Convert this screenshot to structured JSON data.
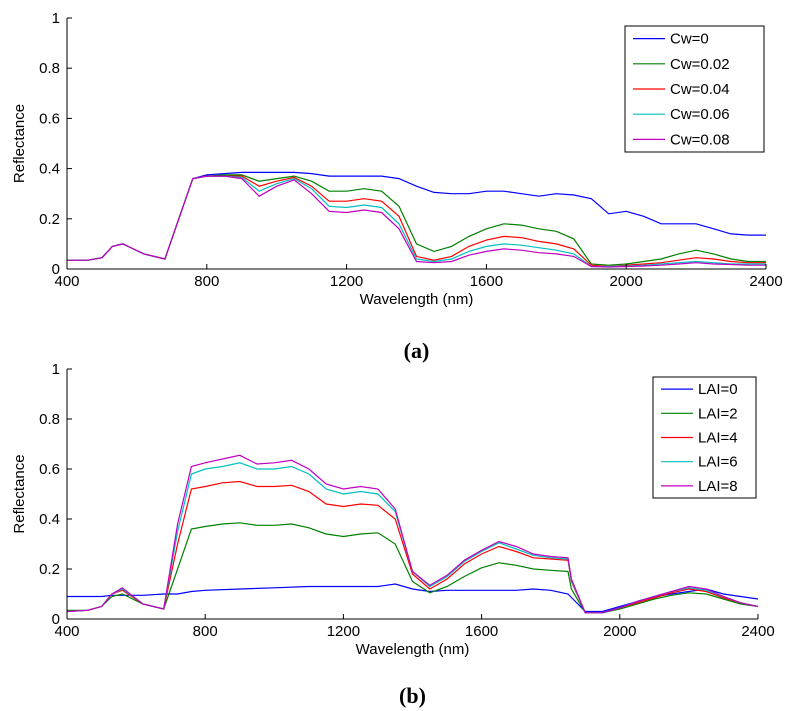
{
  "chart_data": [
    {
      "type": "line",
      "caption": "(a)",
      "xlabel": "Wavelength  (nm)",
      "ylabel": "Reflectance",
      "xlim": [
        400,
        2400
      ],
      "ylim": [
        0,
        1
      ],
      "xticks": [
        "400",
        "800",
        "1200",
        "1600",
        "2000",
        "2400"
      ],
      "yticks": [
        "0",
        "0.2",
        "0.4",
        "0.6",
        "0.8",
        "1"
      ],
      "legend": "top-right",
      "grid": false,
      "series": [
        {
          "name": "Cw=0",
          "color": "#0000ff",
          "x": [
            400,
            460,
            500,
            530,
            560,
            620,
            680,
            720,
            760,
            800,
            850,
            900,
            950,
            1000,
            1050,
            1100,
            1150,
            1200,
            1250,
            1300,
            1350,
            1400,
            1450,
            1500,
            1550,
            1600,
            1650,
            1700,
            1750,
            1800,
            1850,
            1900,
            1950,
            2000,
            2050,
            2100,
            2150,
            2200,
            2250,
            2300,
            2350,
            2400
          ],
          "y": [
            0.035,
            0.035,
            0.045,
            0.09,
            0.1,
            0.06,
            0.04,
            0.2,
            0.36,
            0.375,
            0.38,
            0.385,
            0.385,
            0.385,
            0.385,
            0.38,
            0.37,
            0.37,
            0.37,
            0.37,
            0.36,
            0.33,
            0.305,
            0.3,
            0.3,
            0.31,
            0.31,
            0.3,
            0.29,
            0.3,
            0.295,
            0.28,
            0.22,
            0.23,
            0.21,
            0.18,
            0.18,
            0.18,
            0.16,
            0.14,
            0.135,
            0.135
          ]
        },
        {
          "name": "Cw=0.02",
          "color": "#008000",
          "x": [
            400,
            460,
            500,
            530,
            560,
            620,
            680,
            720,
            760,
            800,
            850,
            900,
            950,
            1000,
            1050,
            1100,
            1150,
            1200,
            1250,
            1300,
            1350,
            1400,
            1450,
            1500,
            1550,
            1600,
            1650,
            1700,
            1750,
            1800,
            1850,
            1900,
            1950,
            2000,
            2050,
            2100,
            2150,
            2200,
            2250,
            2300,
            2350,
            2400
          ],
          "y": [
            0.035,
            0.035,
            0.045,
            0.09,
            0.1,
            0.06,
            0.04,
            0.2,
            0.36,
            0.37,
            0.375,
            0.375,
            0.35,
            0.36,
            0.37,
            0.35,
            0.31,
            0.31,
            0.32,
            0.31,
            0.25,
            0.1,
            0.07,
            0.09,
            0.13,
            0.16,
            0.18,
            0.175,
            0.16,
            0.15,
            0.12,
            0.02,
            0.015,
            0.02,
            0.03,
            0.04,
            0.06,
            0.075,
            0.06,
            0.04,
            0.03,
            0.03
          ]
        },
        {
          "name": "Cw=0.04",
          "color": "#ff0000",
          "x": [
            400,
            460,
            500,
            530,
            560,
            620,
            680,
            720,
            760,
            800,
            850,
            900,
            950,
            1000,
            1050,
            1100,
            1150,
            1200,
            1250,
            1300,
            1350,
            1400,
            1450,
            1500,
            1550,
            1600,
            1650,
            1700,
            1750,
            1800,
            1850,
            1900,
            1950,
            2000,
            2050,
            2100,
            2150,
            2200,
            2250,
            2300,
            2350,
            2400
          ],
          "y": [
            0.035,
            0.035,
            0.045,
            0.09,
            0.1,
            0.06,
            0.04,
            0.2,
            0.36,
            0.37,
            0.37,
            0.37,
            0.33,
            0.35,
            0.365,
            0.33,
            0.27,
            0.27,
            0.28,
            0.27,
            0.21,
            0.05,
            0.035,
            0.05,
            0.09,
            0.115,
            0.13,
            0.125,
            0.11,
            0.1,
            0.08,
            0.015,
            0.01,
            0.015,
            0.02,
            0.025,
            0.035,
            0.045,
            0.04,
            0.03,
            0.025,
            0.025
          ]
        },
        {
          "name": "Cw=0.06",
          "color": "#00c0c0",
          "x": [
            400,
            460,
            500,
            530,
            560,
            620,
            680,
            720,
            760,
            800,
            850,
            900,
            950,
            1000,
            1050,
            1100,
            1150,
            1200,
            1250,
            1300,
            1350,
            1400,
            1450,
            1500,
            1550,
            1600,
            1650,
            1700,
            1750,
            1800,
            1850,
            1900,
            1950,
            2000,
            2050,
            2100,
            2150,
            2200,
            2250,
            2300,
            2350,
            2400
          ],
          "y": [
            0.035,
            0.035,
            0.045,
            0.09,
            0.1,
            0.06,
            0.04,
            0.2,
            0.36,
            0.37,
            0.37,
            0.365,
            0.31,
            0.34,
            0.36,
            0.32,
            0.25,
            0.245,
            0.255,
            0.245,
            0.18,
            0.04,
            0.03,
            0.04,
            0.07,
            0.09,
            0.1,
            0.095,
            0.085,
            0.075,
            0.06,
            0.01,
            0.01,
            0.012,
            0.015,
            0.02,
            0.025,
            0.03,
            0.025,
            0.02,
            0.02,
            0.02
          ]
        },
        {
          "name": "Cw=0.08",
          "color": "#c000c0",
          "x": [
            400,
            460,
            500,
            530,
            560,
            620,
            680,
            720,
            760,
            800,
            850,
            900,
            950,
            1000,
            1050,
            1100,
            1150,
            1200,
            1250,
            1300,
            1350,
            1400,
            1450,
            1500,
            1550,
            1600,
            1650,
            1700,
            1750,
            1800,
            1850,
            1900,
            1950,
            2000,
            2050,
            2100,
            2150,
            2200,
            2250,
            2300,
            2350,
            2400
          ],
          "y": [
            0.035,
            0.035,
            0.045,
            0.09,
            0.1,
            0.06,
            0.04,
            0.2,
            0.36,
            0.37,
            0.37,
            0.36,
            0.29,
            0.33,
            0.355,
            0.3,
            0.23,
            0.225,
            0.235,
            0.225,
            0.16,
            0.03,
            0.025,
            0.03,
            0.055,
            0.07,
            0.08,
            0.075,
            0.065,
            0.06,
            0.05,
            0.01,
            0.008,
            0.01,
            0.012,
            0.015,
            0.02,
            0.025,
            0.02,
            0.018,
            0.015,
            0.015
          ]
        }
      ]
    },
    {
      "type": "line",
      "caption": "(b)",
      "xlabel": "Wavelength  (nm)",
      "ylabel": "Reflectance",
      "xlim": [
        400,
        2400
      ],
      "ylim": [
        0,
        1
      ],
      "xticks": [
        "400",
        "800",
        "1200",
        "1600",
        "2000",
        "2400"
      ],
      "yticks": [
        "0",
        "0.2",
        "0.4",
        "0.6",
        "0.8",
        "1"
      ],
      "legend": "top-right",
      "grid": false,
      "series": [
        {
          "name": "LAI=0",
          "color": "#0000ff",
          "x": [
            400,
            460,
            500,
            530,
            560,
            620,
            680,
            720,
            760,
            800,
            900,
            1000,
            1100,
            1200,
            1300,
            1350,
            1400,
            1450,
            1500,
            1550,
            1600,
            1650,
            1700,
            1750,
            1800,
            1850,
            1900,
            1950,
            2000,
            2050,
            2100,
            2150,
            2200,
            2250,
            2300,
            2350,
            2400
          ],
          "y": [
            0.09,
            0.09,
            0.09,
            0.095,
            0.095,
            0.095,
            0.1,
            0.1,
            0.11,
            0.115,
            0.12,
            0.125,
            0.13,
            0.13,
            0.13,
            0.14,
            0.12,
            0.11,
            0.115,
            0.115,
            0.115,
            0.115,
            0.115,
            0.12,
            0.115,
            0.1,
            0.03,
            0.03,
            0.05,
            0.07,
            0.09,
            0.1,
            0.11,
            0.12,
            0.1,
            0.09,
            0.08
          ]
        },
        {
          "name": "LAI=2",
          "color": "#008000",
          "x": [
            400,
            460,
            500,
            530,
            560,
            620,
            680,
            720,
            760,
            800,
            850,
            900,
            950,
            1000,
            1050,
            1100,
            1150,
            1200,
            1250,
            1300,
            1350,
            1400,
            1450,
            1500,
            1550,
            1600,
            1650,
            1700,
            1750,
            1800,
            1850,
            1860,
            1900,
            1950,
            2000,
            2050,
            2100,
            2150,
            2200,
            2250,
            2300,
            2350,
            2400
          ],
          "y": [
            0.035,
            0.035,
            0.05,
            0.09,
            0.1,
            0.06,
            0.04,
            0.2,
            0.36,
            0.37,
            0.38,
            0.385,
            0.375,
            0.375,
            0.38,
            0.365,
            0.34,
            0.33,
            0.34,
            0.345,
            0.3,
            0.15,
            0.105,
            0.13,
            0.17,
            0.205,
            0.225,
            0.215,
            0.2,
            0.195,
            0.19,
            0.12,
            0.025,
            0.025,
            0.04,
            0.06,
            0.08,
            0.095,
            0.105,
            0.1,
            0.08,
            0.06,
            0.05
          ]
        },
        {
          "name": "LAI=4",
          "color": "#ff0000",
          "x": [
            400,
            460,
            500,
            530,
            560,
            620,
            680,
            720,
            760,
            800,
            850,
            900,
            950,
            1000,
            1050,
            1100,
            1150,
            1200,
            1250,
            1300,
            1350,
            1400,
            1450,
            1500,
            1550,
            1600,
            1650,
            1700,
            1750,
            1800,
            1850,
            1860,
            1900,
            1950,
            2000,
            2050,
            2100,
            2150,
            2200,
            2250,
            2300,
            2350,
            2400
          ],
          "y": [
            0.03,
            0.035,
            0.05,
            0.1,
            0.115,
            0.06,
            0.04,
            0.3,
            0.52,
            0.53,
            0.545,
            0.55,
            0.53,
            0.53,
            0.535,
            0.51,
            0.46,
            0.45,
            0.46,
            0.455,
            0.4,
            0.18,
            0.12,
            0.16,
            0.22,
            0.26,
            0.29,
            0.27,
            0.245,
            0.24,
            0.235,
            0.15,
            0.025,
            0.025,
            0.045,
            0.065,
            0.085,
            0.105,
            0.12,
            0.11,
            0.085,
            0.065,
            0.05
          ]
        },
        {
          "name": "LAI=6",
          "color": "#00c0c0",
          "x": [
            400,
            460,
            500,
            530,
            560,
            620,
            680,
            720,
            760,
            800,
            850,
            900,
            950,
            1000,
            1050,
            1100,
            1150,
            1200,
            1250,
            1300,
            1350,
            1400,
            1450,
            1500,
            1550,
            1600,
            1650,
            1700,
            1750,
            1800,
            1850,
            1860,
            1900,
            1950,
            2000,
            2050,
            2100,
            2150,
            2200,
            2250,
            2300,
            2350,
            2400
          ],
          "y": [
            0.03,
            0.035,
            0.05,
            0.1,
            0.12,
            0.06,
            0.04,
            0.35,
            0.58,
            0.6,
            0.61,
            0.625,
            0.6,
            0.6,
            0.61,
            0.58,
            0.52,
            0.5,
            0.51,
            0.5,
            0.43,
            0.19,
            0.13,
            0.17,
            0.23,
            0.27,
            0.305,
            0.28,
            0.255,
            0.245,
            0.24,
            0.155,
            0.025,
            0.025,
            0.045,
            0.07,
            0.09,
            0.11,
            0.125,
            0.115,
            0.09,
            0.065,
            0.05
          ]
        },
        {
          "name": "LAI=8",
          "color": "#c000c0",
          "x": [
            400,
            460,
            500,
            530,
            560,
            620,
            680,
            720,
            760,
            800,
            850,
            900,
            950,
            1000,
            1050,
            1100,
            1150,
            1200,
            1250,
            1300,
            1350,
            1400,
            1450,
            1500,
            1550,
            1600,
            1650,
            1700,
            1750,
            1800,
            1850,
            1860,
            1900,
            1950,
            2000,
            2050,
            2100,
            2150,
            2200,
            2250,
            2300,
            2350,
            2400
          ],
          "y": [
            0.03,
            0.035,
            0.05,
            0.1,
            0.125,
            0.06,
            0.04,
            0.38,
            0.61,
            0.625,
            0.64,
            0.655,
            0.62,
            0.625,
            0.635,
            0.6,
            0.54,
            0.52,
            0.53,
            0.52,
            0.44,
            0.19,
            0.135,
            0.175,
            0.235,
            0.275,
            0.31,
            0.29,
            0.26,
            0.25,
            0.245,
            0.16,
            0.025,
            0.025,
            0.045,
            0.07,
            0.09,
            0.11,
            0.13,
            0.12,
            0.09,
            0.065,
            0.05
          ]
        }
      ]
    }
  ]
}
